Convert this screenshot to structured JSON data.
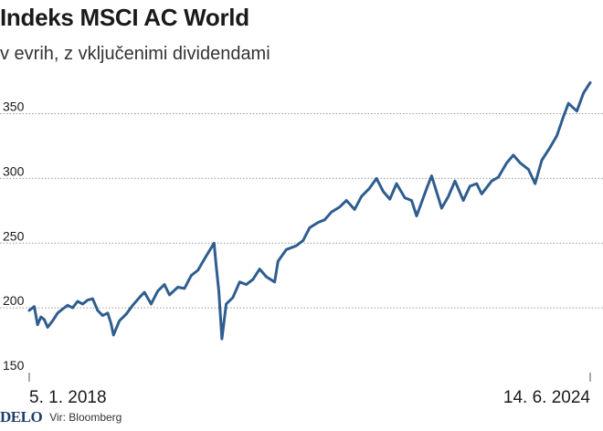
{
  "header": {
    "title": "Indeks MSCI AC World",
    "subtitle": "v evrih, z vključenimi dividendami"
  },
  "footer": {
    "logo": "DELO",
    "source": "Vir: Bloomberg"
  },
  "colors": {
    "line": "#2f5d8f",
    "grid": "#9a9a9a",
    "text": "#1a1a1a"
  },
  "chart_data": {
    "type": "line",
    "title": "Indeks MSCI AC World",
    "subtitle": "v evrih, z vključenimi dividendami",
    "xlabel": "",
    "ylabel": "",
    "ylim": [
      150,
      380
    ],
    "yticks": [
      150,
      200,
      250,
      300,
      350
    ],
    "ytick_labels": [
      "150",
      "200",
      "250",
      "300",
      "350"
    ],
    "xlim": [
      "2018-01-05",
      "2024-06-14"
    ],
    "xtick_labels": [
      "5. 1. 2018",
      "14. 6. 2024"
    ],
    "grid": "horizontal",
    "legend": "none",
    "series": [
      {
        "points": [
          [
            "2018-01-05",
            198
          ],
          [
            "2018-01-26",
            201
          ],
          [
            "2018-02-09",
            187
          ],
          [
            "2018-02-23",
            193
          ],
          [
            "2018-03-09",
            191
          ],
          [
            "2018-03-23",
            185
          ],
          [
            "2018-04-13",
            190
          ],
          [
            "2018-05-04",
            196
          ],
          [
            "2018-05-25",
            199
          ],
          [
            "2018-06-15",
            202
          ],
          [
            "2018-07-06",
            200
          ],
          [
            "2018-07-27",
            205
          ],
          [
            "2018-08-17",
            203
          ],
          [
            "2018-09-07",
            206
          ],
          [
            "2018-09-28",
            207
          ],
          [
            "2018-10-19",
            198
          ],
          [
            "2018-11-09",
            194
          ],
          [
            "2018-11-30",
            196
          ],
          [
            "2018-12-14",
            188
          ],
          [
            "2018-12-24",
            179
          ],
          [
            "2019-01-18",
            190
          ],
          [
            "2019-02-15",
            195
          ],
          [
            "2019-03-15",
            202
          ],
          [
            "2019-04-12",
            208
          ],
          [
            "2019-05-03",
            212
          ],
          [
            "2019-05-31",
            203
          ],
          [
            "2019-06-28",
            213
          ],
          [
            "2019-07-26",
            218
          ],
          [
            "2019-08-16",
            210
          ],
          [
            "2019-09-20",
            216
          ],
          [
            "2019-10-18",
            215
          ],
          [
            "2019-11-15",
            225
          ],
          [
            "2019-12-13",
            229
          ],
          [
            "2020-01-17",
            240
          ],
          [
            "2020-02-19",
            250
          ],
          [
            "2020-02-28",
            232
          ],
          [
            "2020-03-10",
            213
          ],
          [
            "2020-03-23",
            176
          ],
          [
            "2020-04-10",
            203
          ],
          [
            "2020-05-08",
            208
          ],
          [
            "2020-06-05",
            220
          ],
          [
            "2020-07-03",
            218
          ],
          [
            "2020-07-31",
            222
          ],
          [
            "2020-08-28",
            230
          ],
          [
            "2020-09-25",
            224
          ],
          [
            "2020-10-30",
            220
          ],
          [
            "2020-11-13",
            236
          ],
          [
            "2020-12-18",
            245
          ],
          [
            "2021-01-29",
            248
          ],
          [
            "2021-02-26",
            252
          ],
          [
            "2021-03-26",
            262
          ],
          [
            "2021-04-30",
            266
          ],
          [
            "2021-05-28",
            268
          ],
          [
            "2021-06-25",
            274
          ],
          [
            "2021-07-30",
            278
          ],
          [
            "2021-08-27",
            283
          ],
          [
            "2021-09-30",
            276
          ],
          [
            "2021-10-29",
            286
          ],
          [
            "2021-11-30",
            292
          ],
          [
            "2021-12-31",
            300
          ],
          [
            "2022-01-28",
            290
          ],
          [
            "2022-02-25",
            284
          ],
          [
            "2022-03-25",
            296
          ],
          [
            "2022-04-29",
            285
          ],
          [
            "2022-05-27",
            283
          ],
          [
            "2022-06-17",
            271
          ],
          [
            "2022-07-29",
            292
          ],
          [
            "2022-08-19",
            302
          ],
          [
            "2022-09-30",
            277
          ],
          [
            "2022-10-28",
            286
          ],
          [
            "2022-11-25",
            298
          ],
          [
            "2022-12-30",
            283
          ],
          [
            "2023-01-27",
            294
          ],
          [
            "2023-02-24",
            296
          ],
          [
            "2023-03-17",
            288
          ],
          [
            "2023-04-28",
            298
          ],
          [
            "2023-05-26",
            301
          ],
          [
            "2023-06-30",
            312
          ],
          [
            "2023-07-28",
            318
          ],
          [
            "2023-08-25",
            312
          ],
          [
            "2023-09-29",
            307
          ],
          [
            "2023-10-27",
            296
          ],
          [
            "2023-11-24",
            314
          ],
          [
            "2023-12-29",
            324
          ],
          [
            "2024-01-26",
            333
          ],
          [
            "2024-02-23",
            348
          ],
          [
            "2024-03-15",
            358
          ],
          [
            "2024-04-19",
            352
          ],
          [
            "2024-05-17",
            366
          ],
          [
            "2024-06-14",
            374
          ]
        ]
      }
    ]
  }
}
